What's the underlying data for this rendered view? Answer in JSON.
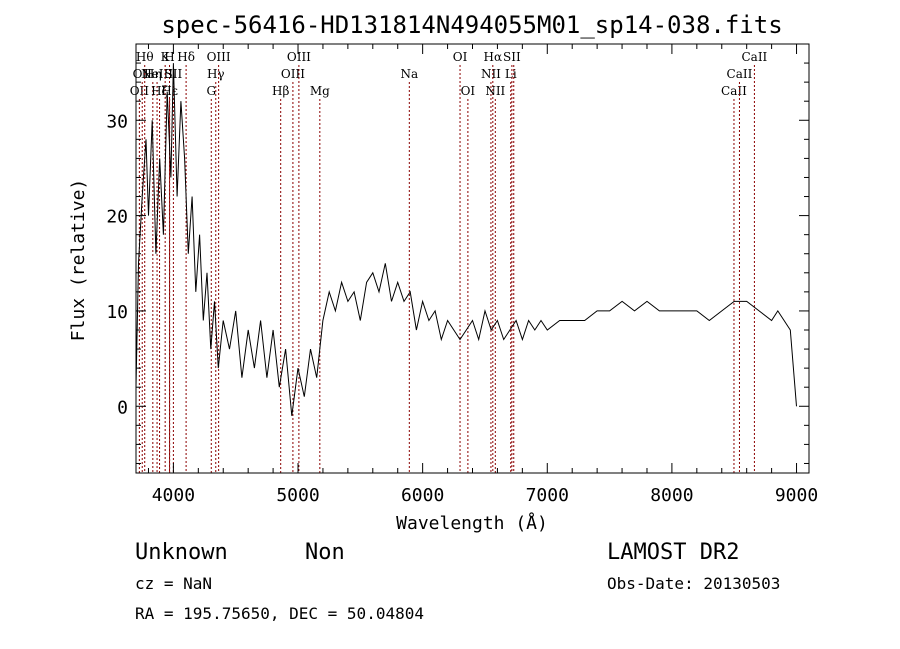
{
  "chart_data": {
    "type": "line",
    "title": "spec-56416-HD131814N494055M01_sp14-038.fits",
    "xlabel": "Wavelength (Å)",
    "ylabel": "Flux (relative)",
    "xlim": [
      3700,
      9100
    ],
    "ylim": [
      -7,
      38
    ],
    "x_ticks": [
      4000,
      5000,
      6000,
      7000,
      8000,
      9000
    ],
    "y_ticks": [
      0,
      10,
      20,
      30
    ],
    "line_color": "#000000",
    "marker_color": "#8b0000",
    "series": [
      {
        "x": [
          3700,
          3720,
          3750,
          3780,
          3800,
          3830,
          3860,
          3890,
          3920,
          3950,
          3980,
          4000,
          4030,
          4060,
          4090,
          4120,
          4150,
          4180,
          4210,
          4240,
          4270,
          4300,
          4330,
          4360,
          4400,
          4450,
          4500,
          4550,
          4600,
          4650,
          4700,
          4750,
          4800,
          4850,
          4900,
          4950,
          5000,
          5050,
          5100,
          5150,
          5200,
          5250,
          5300,
          5350,
          5400,
          5450,
          5500,
          5550,
          5600,
          5650,
          5700,
          5750,
          5800,
          5850,
          5900,
          5950,
          6000,
          6050,
          6100,
          6150,
          6200,
          6250,
          6300,
          6350,
          6400,
          6450,
          6500,
          6550,
          6600,
          6650,
          6700,
          6750,
          6800,
          6850,
          6900,
          6950,
          7000,
          7100,
          7200,
          7300,
          7400,
          7500,
          7600,
          7700,
          7800,
          7900,
          8000,
          8100,
          8200,
          8300,
          8400,
          8500,
          8600,
          8700,
          8800,
          8850,
          8900,
          8950,
          9000
        ],
        "y": [
          2,
          15,
          22,
          28,
          20,
          30,
          16,
          26,
          18,
          33,
          24,
          36,
          22,
          32,
          26,
          16,
          22,
          12,
          18,
          9,
          14,
          6,
          11,
          4,
          9,
          6,
          10,
          3,
          8,
          4,
          9,
          3,
          8,
          2,
          6,
          -1,
          4,
          1,
          6,
          3,
          9,
          12,
          10,
          13,
          11,
          12,
          9,
          13,
          14,
          12,
          15,
          11,
          13,
          11,
          12,
          8,
          11,
          9,
          10,
          7,
          9,
          8,
          7,
          8,
          9,
          7,
          10,
          8,
          9,
          7,
          8,
          9,
          7,
          9,
          8,
          9,
          8,
          9,
          9,
          9,
          10,
          10,
          11,
          10,
          11,
          10,
          10,
          10,
          10,
          9,
          10,
          11,
          11,
          10,
          9,
          10,
          9,
          8,
          0
        ]
      }
    ],
    "line_markers": [
      {
        "x": 3727,
        "label": "OII",
        "row": 3
      },
      {
        "x": 3750,
        "label": "OII",
        "row": 2
      },
      {
        "x": 3770,
        "label": "Hθ",
        "row": 1
      },
      {
        "x": 3835,
        "label": "Hη",
        "row": 2
      },
      {
        "x": 3869,
        "label": "NeIII",
        "row": 2
      },
      {
        "x": 3889,
        "label": "Hζ",
        "row": 3
      },
      {
        "x": 3934,
        "label": "K",
        "row": 1
      },
      {
        "x": 3969,
        "label": "H",
        "row": 1
      },
      {
        "x": 3970,
        "label": "Hε",
        "row": 3
      },
      {
        "x": 4000,
        "label": "SII",
        "row": 2
      },
      {
        "x": 4102,
        "label": "Hδ",
        "row": 1
      },
      {
        "x": 4304,
        "label": "G",
        "row": 3
      },
      {
        "x": 4340,
        "label": "Hγ",
        "row": 2
      },
      {
        "x": 4363,
        "label": "OIII",
        "row": 1
      },
      {
        "x": 4861,
        "label": "Hβ",
        "row": 3
      },
      {
        "x": 4959,
        "label": "OIII",
        "row": 2
      },
      {
        "x": 5007,
        "label": "OIII",
        "row": 1
      },
      {
        "x": 5175,
        "label": "Mg",
        "row": 3
      },
      {
        "x": 5893,
        "label": "Na",
        "row": 2
      },
      {
        "x": 6300,
        "label": "OI",
        "row": 1
      },
      {
        "x": 6363,
        "label": "OI",
        "row": 3
      },
      {
        "x": 6548,
        "label": "NII",
        "row": 2
      },
      {
        "x": 6563,
        "label": "Hα",
        "row": 1
      },
      {
        "x": 6583,
        "label": "NII",
        "row": 3
      },
      {
        "x": 6707,
        "label": "Li",
        "row": 2
      },
      {
        "x": 6716,
        "label": "SII",
        "row": 1
      },
      {
        "x": 6731,
        "label": "",
        "row": 1
      },
      {
        "x": 8498,
        "label": "CaII",
        "row": 3
      },
      {
        "x": 8542,
        "label": "CaII",
        "row": 2
      },
      {
        "x": 8662,
        "label": "CaII",
        "row": 1
      }
    ]
  },
  "info": {
    "object_class": "Unknown",
    "object_subclass": "Non",
    "survey": "LAMOST DR2",
    "redshift": "cz = NaN",
    "obs_date": "Obs-Date: 20130503",
    "coords": "RA = 195.75650, DEC =  50.04804"
  }
}
